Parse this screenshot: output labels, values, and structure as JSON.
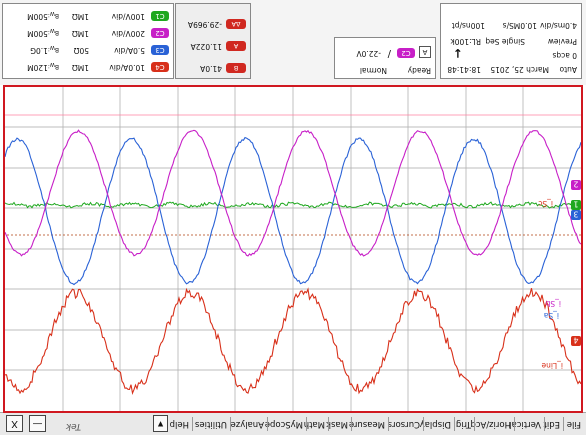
{
  "menu": {
    "items": [
      "File",
      "Edit",
      "Vertical",
      "Horiz/Acq",
      "Trig",
      "Display",
      "Cursors",
      "Measure",
      "Mask",
      "Math",
      "MyScope",
      "Analyze",
      "Utilities",
      "Help"
    ],
    "help_arrow": "▼",
    "brand": "Tek",
    "minimize": "—",
    "close": "X"
  },
  "waveform_labels": {
    "ch1_marker": "1",
    "ch2_marker": "2",
    "ch3_marker": "3",
    "ch4_marker": "4",
    "label_i_line": "i_Line",
    "label_i_sa": "i_Sa",
    "label_i_sb": "i_Sb",
    "label_i_sc": "i_Sc"
  },
  "channels": [
    {
      "id": "C1",
      "scale": "100V/div",
      "coupling": "1MΩ",
      "bw": "500M",
      "color": "#1fa81f"
    },
    {
      "id": "C2",
      "scale": "200V/div",
      "coupling": "1MΩ",
      "bw": "500M",
      "color": "#b51db5"
    },
    {
      "id": "C3",
      "scale": "5.0A/div",
      "coupling": "50Ω",
      "bw": "1.0G",
      "color": "#2060d8"
    },
    {
      "id": "C4",
      "scale": "10.0A/div",
      "coupling": "1MΩ",
      "bw": "120M",
      "color": "#d0301a"
    }
  ],
  "cursors": [
    {
      "id": "ΔA",
      "value": "-29.969A"
    },
    {
      "id": "A",
      "value": "11.022A"
    },
    {
      "id": "B",
      "value": "41.0A"
    }
  ],
  "trigger": {
    "state": "Ready",
    "mode": "Normal",
    "source": "C2",
    "level": "-22.0V",
    "slope_label": "/",
    "edge_box": "A"
  },
  "acquisition": {
    "mode": "Auto",
    "date": "March 25, 2015",
    "time": "18:41:48",
    "acqs": "0 acqs",
    "preview": "Preview",
    "seq": "Single Seq",
    "rl": "RL:100k",
    "hscale": "4.0ms/div",
    "sample": "10.0MS/s",
    "res": "100ns/pt",
    "arrow": "↓"
  },
  "colors": {
    "ch1": "#1fa81f",
    "ch2": "#c71fc7",
    "ch3": "#2a62d6",
    "ch4": "#d8301a",
    "grid": "#a8a8a8",
    "frame": "#d01820"
  }
}
